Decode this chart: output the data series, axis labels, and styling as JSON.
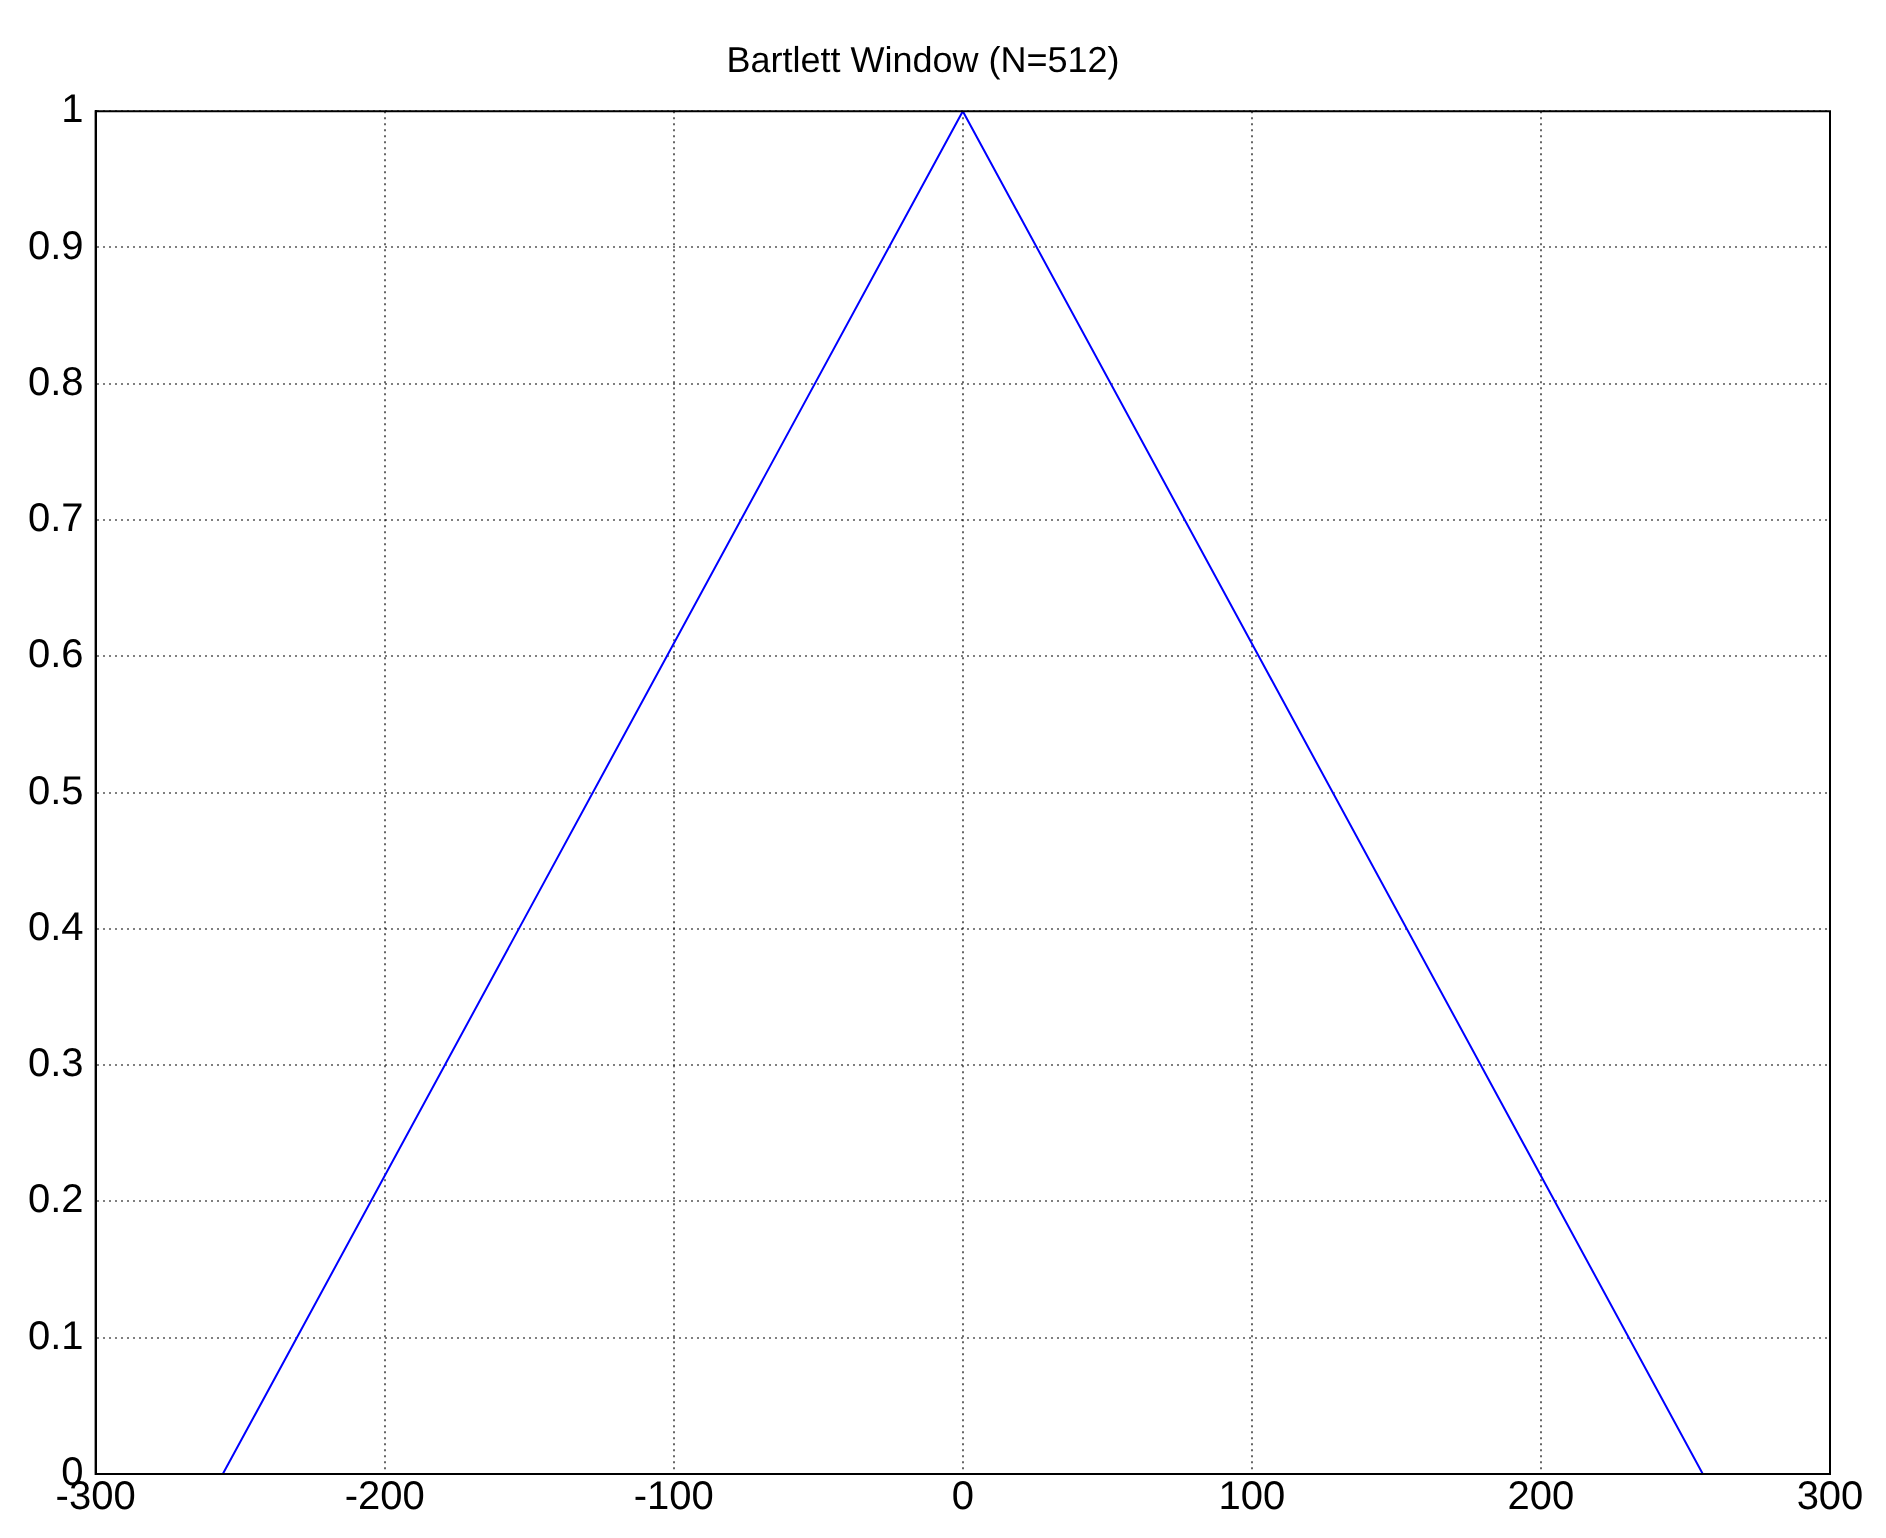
{
  "chart_data": {
    "type": "line",
    "title": "Bartlett Window (N=512)",
    "x": [
      -256,
      0,
      256
    ],
    "series": [
      {
        "color": "#0000ff",
        "values": [
          0,
          1,
          0
        ]
      }
    ],
    "xlim": [
      -300,
      300
    ],
    "xticks": [
      -300,
      -200,
      -100,
      0,
      100,
      200,
      300
    ],
    "ylim": [
      0,
      1
    ],
    "yticks": [
      0,
      0.1,
      0.2,
      0.3,
      0.4,
      0.5,
      0.6,
      0.7,
      0.8,
      0.9,
      1
    ],
    "grid": true,
    "legend": false,
    "marker": "none",
    "line_style": "solid"
  }
}
